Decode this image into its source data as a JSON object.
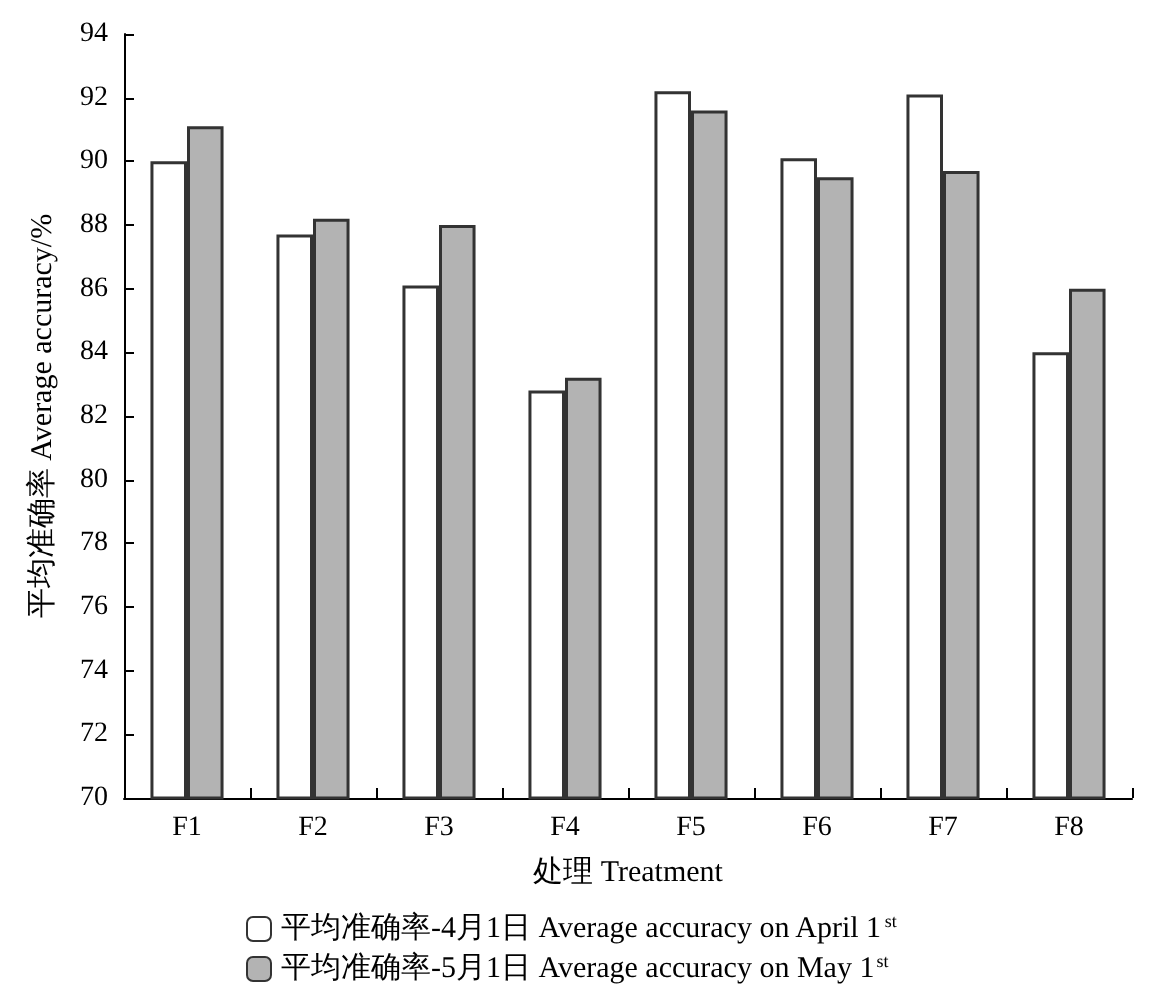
{
  "chart_data": {
    "type": "bar",
    "xlabel": "处理 Treatment",
    "ylabel": "平均准确率 Average accuracy/%",
    "categories": [
      "F1",
      "F2",
      "F3",
      "F4",
      "F5",
      "F6",
      "F7",
      "F8"
    ],
    "series": [
      {
        "name": "平均准确率-4月1日 Average accuracy on April 1$^{st}$",
        "color": "#ffffff",
        "values": [
          90.0,
          87.7,
          86.1,
          82.8,
          92.2,
          90.1,
          92.1,
          84.0
        ]
      },
      {
        "name": "平均准确率-5月1日 Average accuracy on May 1$^{st}$",
        "color": "#b3b3b3",
        "values": [
          91.1,
          88.2,
          88.0,
          83.2,
          91.6,
          89.5,
          89.7,
          86.0
        ]
      }
    ],
    "ylim": [
      70,
      94
    ],
    "yticks": [
      70,
      72,
      74,
      76,
      78,
      80,
      82,
      84,
      86,
      88,
      90,
      92,
      94
    ],
    "grid": false,
    "legend": "bottom"
  }
}
